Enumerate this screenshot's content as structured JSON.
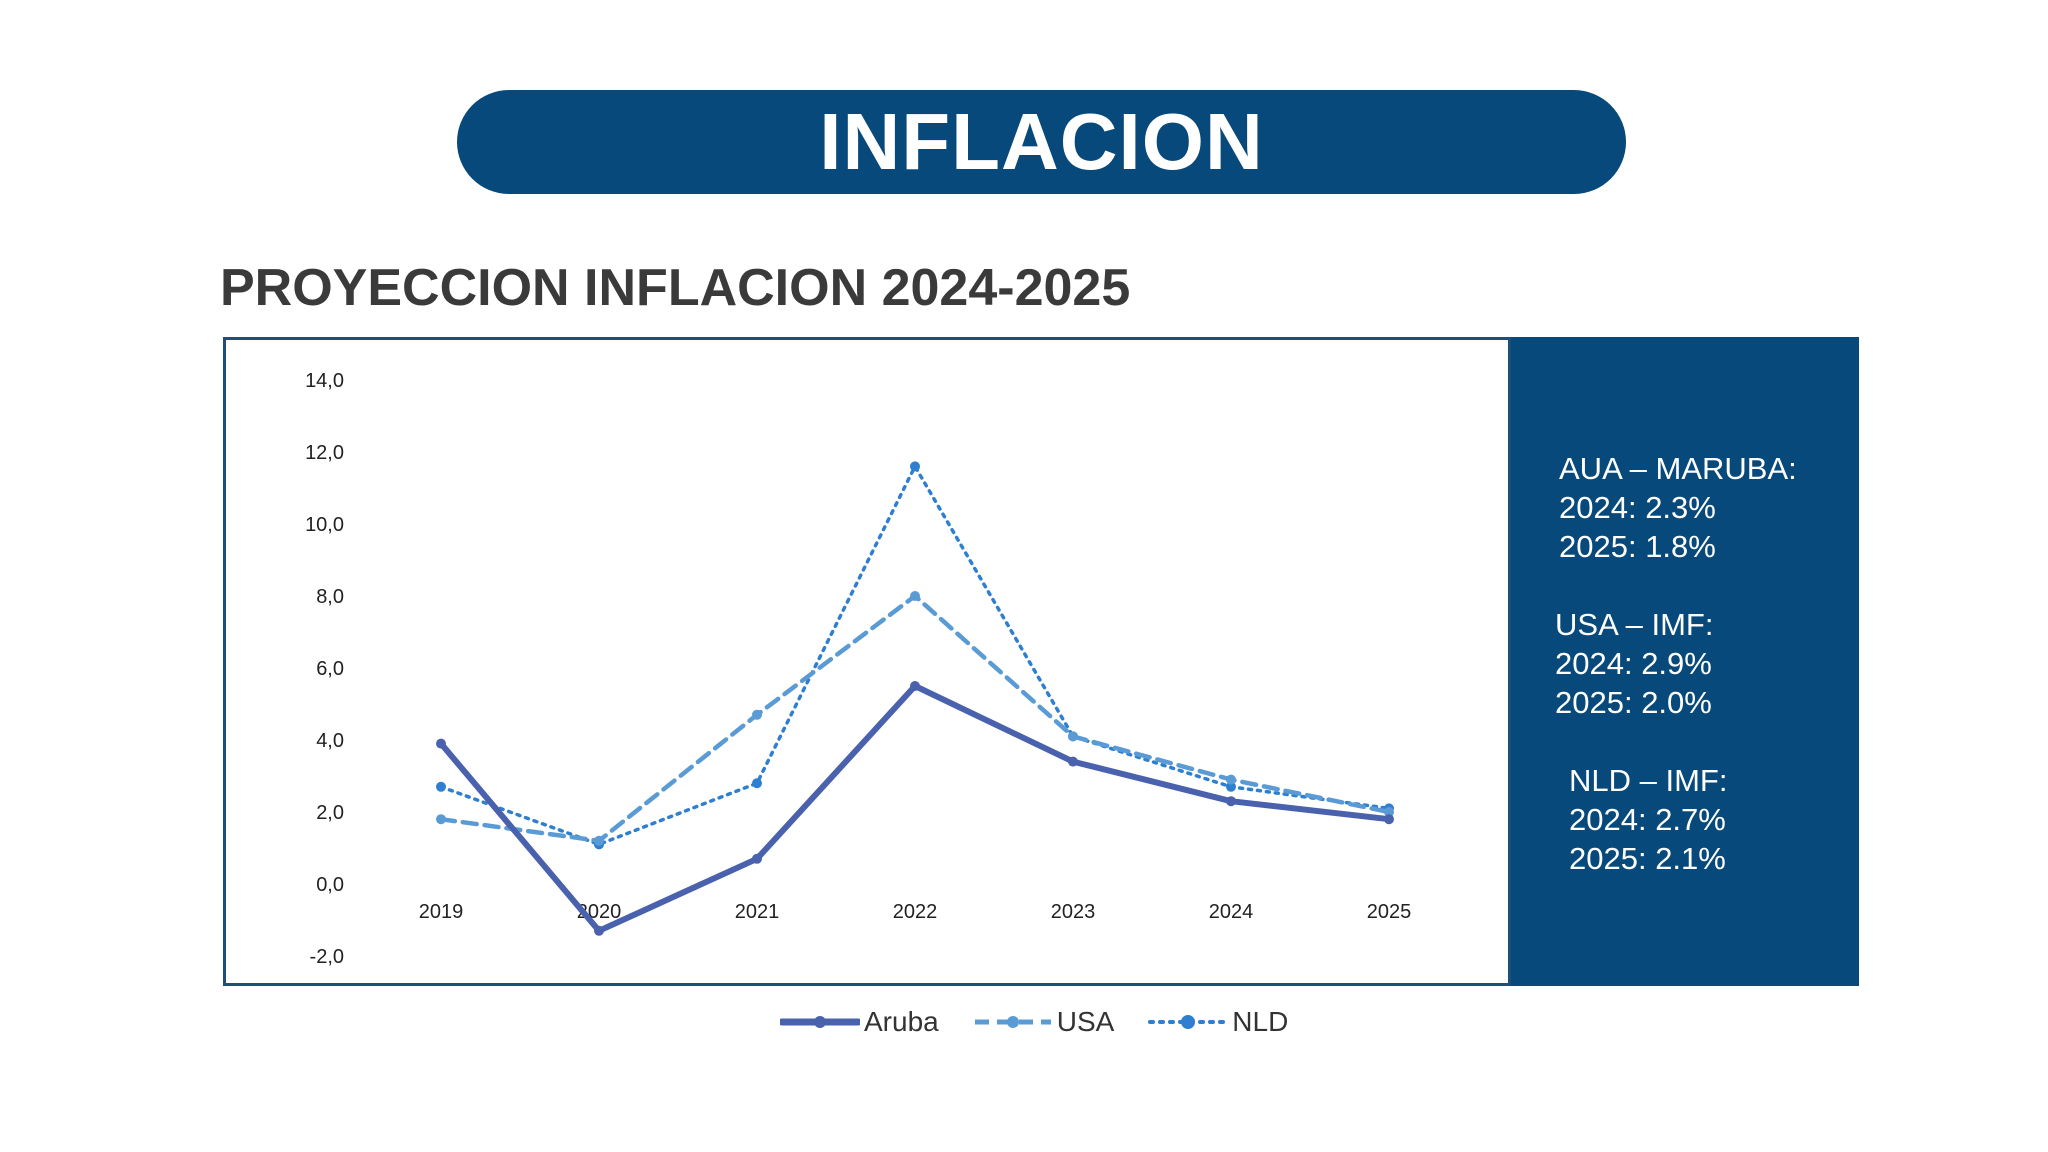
{
  "header": {
    "title": "INFLACION"
  },
  "subtitle": "PROYECCION INFLACION 2024-2025",
  "colors": {
    "brand": "#07497a",
    "aruba": "#4a62ad",
    "usa": "#5b9bd5",
    "nld": "#2f7fd1"
  },
  "chart_data": {
    "type": "line",
    "title": "PROYECCION INFLACION 2024-2025",
    "xlabel": "",
    "ylabel": "",
    "categories": [
      "2019",
      "2020",
      "2021",
      "2022",
      "2023",
      "2024",
      "2025"
    ],
    "y_tick_labels": [
      "14,0",
      "12,0",
      "10,0",
      "8,0",
      "6,0",
      "4,0",
      "2,0",
      "0,0",
      "-2,0"
    ],
    "y_ticks": [
      14,
      12,
      10,
      8,
      6,
      4,
      2,
      0,
      -2
    ],
    "ylim": [
      -2,
      14
    ],
    "grid": false,
    "legend_position": "bottom",
    "series": [
      {
        "name": "Aruba",
        "style": "solid",
        "values": [
          3.9,
          -1.3,
          0.7,
          5.5,
          3.4,
          2.3,
          1.8
        ]
      },
      {
        "name": "USA",
        "style": "dashed",
        "values": [
          1.8,
          1.2,
          4.7,
          8.0,
          4.1,
          2.9,
          2.0
        ]
      },
      {
        "name": "NLD",
        "style": "dotted",
        "values": [
          2.7,
          1.1,
          2.8,
          11.6,
          4.1,
          2.7,
          2.1
        ]
      }
    ]
  },
  "side_panel": {
    "aruba": {
      "heading": "AUA – MARUBA:",
      "line_2024": "2024: 2.3%",
      "line_2025": "2025: 1.8%"
    },
    "usa": {
      "heading": "USA – IMF:",
      "line_2024": "2024: 2.9%",
      "line_2025": "2025: 2.0%"
    },
    "nld": {
      "heading": "NLD – IMF:",
      "line_2024": "2024: 2.7%",
      "line_2025": "2025: 2.1%"
    }
  },
  "legend": [
    {
      "label": "Aruba"
    },
    {
      "label": "USA"
    },
    {
      "label": "NLD"
    }
  ]
}
